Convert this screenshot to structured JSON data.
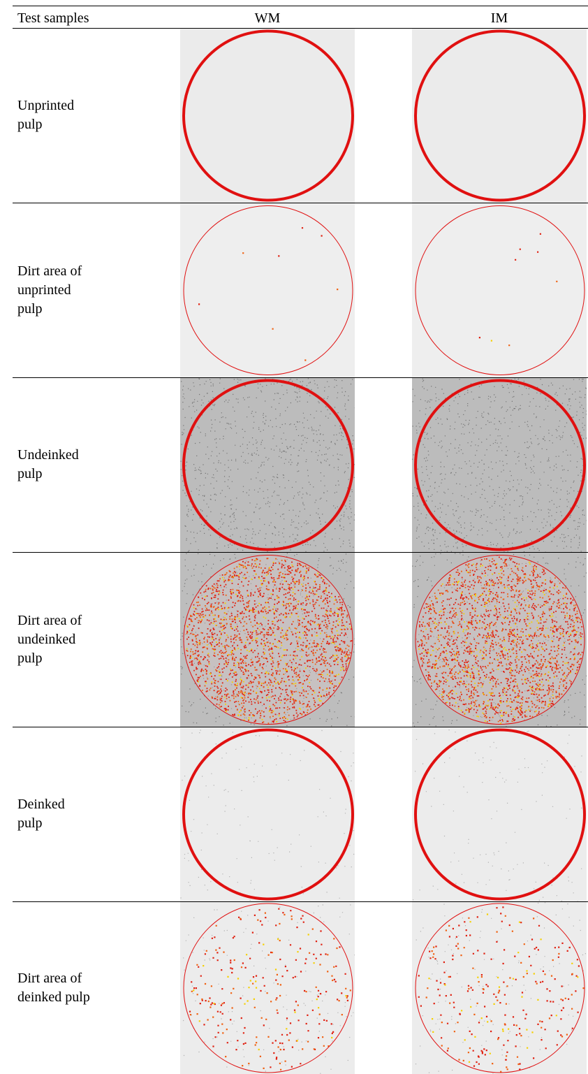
{
  "table": {
    "header": [
      "Test samples",
      "WM",
      "IM"
    ],
    "rows": [
      {
        "label": [
          "Unprinted",
          "pulp"
        ]
      },
      {
        "label": [
          "Dirt area of",
          "unprinted",
          "pulp"
        ]
      },
      {
        "label": [
          "Undeinked",
          "pulp"
        ]
      },
      {
        "label": [
          "Dirt area of",
          "undeinked",
          "pulp"
        ]
      },
      {
        "label": [
          "Deinked",
          "pulp"
        ]
      },
      {
        "label": [
          "Dirt area of",
          "deinked pulp"
        ]
      }
    ]
  }
}
